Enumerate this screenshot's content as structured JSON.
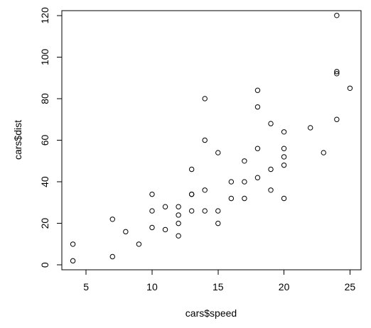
{
  "chart_data": {
    "type": "scatter",
    "title": "",
    "xlabel": "cars$speed",
    "ylabel": "cars$dist",
    "xlim": [
      3.16,
      25.84
    ],
    "ylim": [
      -2.32,
      122.32
    ],
    "x_ticks": [
      5,
      10,
      15,
      20,
      25
    ],
    "y_ticks": [
      0,
      20,
      40,
      60,
      80,
      100,
      120
    ],
    "grid": false,
    "legend": "none",
    "marker": "open-circle",
    "points": [
      [
        4,
        2
      ],
      [
        4,
        10
      ],
      [
        7,
        4
      ],
      [
        7,
        22
      ],
      [
        8,
        16
      ],
      [
        9,
        10
      ],
      [
        10,
        18
      ],
      [
        10,
        26
      ],
      [
        10,
        34
      ],
      [
        11,
        17
      ],
      [
        11,
        28
      ],
      [
        12,
        14
      ],
      [
        12,
        20
      ],
      [
        12,
        24
      ],
      [
        12,
        28
      ],
      [
        13,
        26
      ],
      [
        13,
        34
      ],
      [
        13,
        34
      ],
      [
        13,
        46
      ],
      [
        14,
        26
      ],
      [
        14,
        36
      ],
      [
        14,
        60
      ],
      [
        14,
        80
      ],
      [
        15,
        20
      ],
      [
        15,
        26
      ],
      [
        15,
        54
      ],
      [
        16,
        32
      ],
      [
        16,
        40
      ],
      [
        17,
        32
      ],
      [
        17,
        40
      ],
      [
        17,
        50
      ],
      [
        18,
        42
      ],
      [
        18,
        56
      ],
      [
        18,
        76
      ],
      [
        18,
        84
      ],
      [
        19,
        36
      ],
      [
        19,
        46
      ],
      [
        19,
        68
      ],
      [
        20,
        32
      ],
      [
        20,
        48
      ],
      [
        20,
        52
      ],
      [
        20,
        56
      ],
      [
        20,
        64
      ],
      [
        22,
        66
      ],
      [
        23,
        54
      ],
      [
        24,
        70
      ],
      [
        24,
        92
      ],
      [
        24,
        93
      ],
      [
        24,
        120
      ],
      [
        25,
        85
      ]
    ]
  }
}
